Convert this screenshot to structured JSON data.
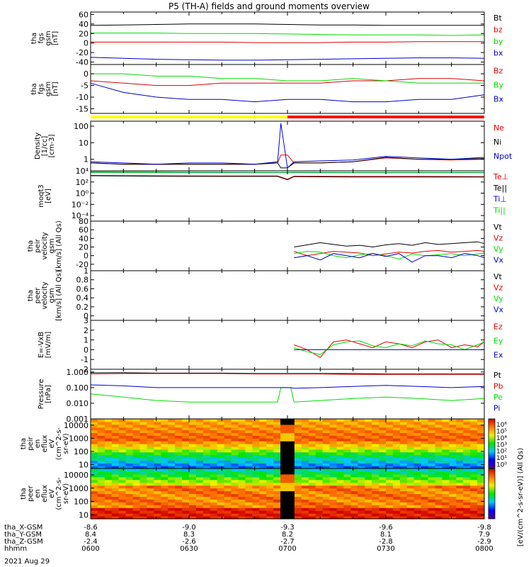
{
  "title": "P5 (TH-A) fields and ground moments overview",
  "date_label": "2021 Aug 29",
  "status_bar": {
    "colors": [
      "#ffff00",
      "#ff0000"
    ],
    "switch_time": 60
  },
  "colors": {
    "black": "#000000",
    "red": "#e00000",
    "green": "#00dd00",
    "blue": "#0000cc"
  },
  "ephemeris": {
    "row_labels": [
      "tha_X-GSM",
      "tha_Y-GSM",
      "tha_Z-GSM",
      "hhmm"
    ],
    "ticks": [
      {
        "t": 0,
        "values": [
          "-8.6",
          "8.4",
          "-2.4",
          "0600"
        ]
      },
      {
        "t": 30,
        "values": [
          "-9.0",
          "8.3",
          "-2.6",
          "0630"
        ]
      },
      {
        "t": 60,
        "values": [
          "-9.3",
          "8.2",
          "-2.7",
          "0700"
        ]
      },
      {
        "t": 90,
        "values": [
          "-9.6",
          "8.1",
          "-2.8",
          "0730"
        ]
      },
      {
        "t": 120,
        "values": [
          "-9.8",
          "7.9",
          "-2.9",
          "0800"
        ]
      }
    ]
  },
  "colorbar": {
    "label": "[eV/(cm^2-s-sr-eV)] (All Qs)",
    "ticks": [
      "10^6",
      "10^5",
      "10^4",
      "10^3",
      "10^2",
      "10^1",
      "10^0"
    ]
  },
  "chart_data": [
    {
      "type": "line",
      "ylabel": [
        "tha",
        "fgs",
        "gsm",
        "[nT]"
      ],
      "ylim": [
        -45,
        65
      ],
      "yticks": [
        60,
        40,
        20,
        0,
        -20,
        -40
      ],
      "x": [
        0,
        10,
        20,
        30,
        40,
        50,
        60,
        70,
        80,
        90,
        100,
        110,
        120
      ],
      "series": [
        {
          "name": "Bt",
          "color": "black",
          "values": [
            37,
            38,
            39,
            40,
            40,
            40,
            39,
            38,
            38,
            37,
            37,
            37,
            37
          ]
        },
        {
          "name": "bz",
          "color": "red",
          "values": [
            2,
            2,
            2,
            2,
            2,
            1,
            1,
            1,
            2,
            2,
            3,
            3,
            3
          ]
        },
        {
          "name": "by",
          "color": "green",
          "values": [
            21,
            21,
            21,
            20,
            20,
            20,
            19,
            18,
            17,
            17,
            17,
            16,
            17
          ]
        },
        {
          "name": "bx",
          "color": "blue",
          "values": [
            -30,
            -32,
            -34,
            -35,
            -36,
            -36,
            -35,
            -34,
            -33,
            -32,
            -31,
            -31,
            -32
          ]
        }
      ]
    },
    {
      "type": "line",
      "ylabel": [
        "tha",
        "fgs",
        "gsm",
        "[nT]"
      ],
      "ylim": [
        -17,
        4
      ],
      "yticks": [
        0,
        -5,
        -10,
        -15
      ],
      "x": [
        0,
        10,
        20,
        30,
        40,
        50,
        60,
        70,
        80,
        90,
        100,
        110,
        120
      ],
      "series": [
        {
          "name": "Bz",
          "color": "red",
          "values": [
            -3,
            -4,
            -5,
            -5,
            -4,
            -4,
            -4,
            -4,
            -3,
            -3,
            -2,
            -2,
            -3
          ]
        },
        {
          "name": "By",
          "color": "green",
          "values": [
            0,
            0,
            -1,
            -1,
            -2,
            -2,
            -3,
            -3,
            -2,
            -3,
            -4,
            -4,
            -4
          ]
        },
        {
          "name": "Bx",
          "color": "blue",
          "values": [
            -4,
            -8,
            -10,
            -11,
            -11,
            -12,
            -11,
            -11,
            -12,
            -12,
            -11,
            -11,
            -9
          ]
        }
      ]
    },
    {
      "type": "line",
      "ylabel": [
        "Density",
        "[1/cc]",
        "[cm-3]"
      ],
      "ylim": [
        0.2,
        200
      ],
      "log": true,
      "ytick_labels": [
        "100",
        "10",
        "1"
      ],
      "x": [
        0,
        10,
        20,
        30,
        40,
        50,
        57,
        58,
        60,
        62,
        70,
        80,
        90,
        100,
        110,
        120
      ],
      "series": [
        {
          "name": "Ne",
          "color": "red",
          "values": [
            0.6,
            0.5,
            0.5,
            0.5,
            0.5,
            0.5,
            0.6,
            1.8,
            1.8,
            0.6,
            0.6,
            0.7,
            1.2,
            1.0,
            0.9,
            1.0
          ]
        },
        {
          "name": "Ni",
          "color": "black",
          "values": [
            0.6,
            0.5,
            0.5,
            0.5,
            0.5,
            0.5,
            0.6,
            0.3,
            0.3,
            0.6,
            0.6,
            0.7,
            1.3,
            1.0,
            1.0,
            1.1
          ]
        },
        {
          "name": "Npot",
          "color": "blue",
          "values": [
            0.7,
            0.6,
            0.5,
            0.6,
            0.6,
            0.5,
            0.7,
            150,
            0.3,
            0.7,
            0.8,
            0.9,
            1.5,
            1.2,
            1.0,
            1.3
          ]
        }
      ]
    },
    {
      "type": "line",
      "ylabel": [
        "moqt3",
        "[eV]"
      ],
      "ylim": [
        1e-05,
        10000
      ],
      "log": true,
      "ytick_labels": [
        "10^4",
        "10^2",
        "10^0",
        "10^-2",
        "10^-4"
      ],
      "x": [
        0,
        20,
        40,
        57,
        60,
        62,
        80,
        100,
        120
      ],
      "series": [
        {
          "name": "Te⊥",
          "color": "red",
          "values": [
            1500,
            1300,
            1200,
            1200,
            300,
            1100,
            1000,
            1000,
            900
          ]
        },
        {
          "name": "Te||",
          "color": "black",
          "values": [
            1300,
            1100,
            1000,
            1000,
            250,
            900,
            800,
            800,
            800
          ]
        },
        {
          "name": "Ti⊥",
          "color": "blue",
          "values": [
            6000,
            5500,
            5200,
            5000,
            5000,
            5200,
            5000,
            5000,
            5000
          ]
        },
        {
          "name": "Ti||",
          "color": "green",
          "values": [
            5000,
            4800,
            4500,
            4500,
            4500,
            4600,
            4500,
            4400,
            4400
          ]
        }
      ]
    },
    {
      "type": "line",
      "ylabel": [
        "tha",
        "peir",
        "velocity",
        "gsm",
        "[km/s] (All Qs)"
      ],
      "ylim": [
        -35,
        80
      ],
      "yticks": [
        80,
        60,
        40,
        20,
        0,
        -20
      ],
      "x": [
        62,
        66,
        70,
        74,
        78,
        82,
        86,
        90,
        94,
        98,
        102,
        106,
        110,
        114,
        118,
        120
      ],
      "series": [
        {
          "name": "Vt",
          "color": "black",
          "values": [
            20,
            25,
            30,
            26,
            22,
            24,
            20,
            25,
            28,
            24,
            30,
            26,
            28,
            30,
            32,
            28
          ]
        },
        {
          "name": "Vz",
          "color": "red",
          "values": [
            10,
            0,
            5,
            10,
            8,
            6,
            0,
            4,
            8,
            6,
            10,
            12,
            8,
            10,
            12,
            10
          ]
        },
        {
          "name": "Vy",
          "color": "green",
          "values": [
            5,
            10,
            8,
            0,
            -5,
            2,
            5,
            0,
            -8,
            4,
            0,
            2,
            5,
            0,
            4,
            6
          ]
        },
        {
          "name": "Vx",
          "color": "blue",
          "values": [
            -5,
            0,
            -10,
            5,
            0,
            -5,
            5,
            -2,
            5,
            -15,
            0,
            0,
            -5,
            5,
            0,
            -5
          ]
        }
      ]
    },
    {
      "type": "line",
      "ylabel": [
        "tha",
        "peer",
        "velocity",
        "gsm",
        "[km/s] (All Qs)"
      ],
      "ylim": [
        -0.1,
        1.0
      ],
      "yticks": [
        1.0,
        0.8,
        0.6,
        0.4,
        0.2,
        0.0
      ],
      "x": [],
      "series": [
        {
          "name": "Vt",
          "color": "black",
          "values": []
        },
        {
          "name": "Vz",
          "color": "red",
          "values": []
        },
        {
          "name": "Vy",
          "color": "green",
          "values": []
        },
        {
          "name": "Vx",
          "color": "blue",
          "values": []
        }
      ]
    },
    {
      "type": "line",
      "ylabel": [
        "E=-VxB",
        "[mV/m]"
      ],
      "ylim": [
        -2,
        3
      ],
      "yticks": [
        3,
        2,
        1,
        0,
        -1,
        -2
      ],
      "x": [
        62,
        66,
        70,
        74,
        78,
        82,
        86,
        90,
        94,
        98,
        102,
        106,
        110,
        114,
        118,
        120
      ],
      "series": [
        {
          "name": "Ez",
          "color": "red",
          "values": [
            0.5,
            0,
            -0.8,
            0.8,
            1.0,
            0.6,
            0.2,
            0.8,
            0.6,
            0.2,
            0.8,
            1.0,
            0.2,
            0.5,
            0.3,
            0.8
          ]
        },
        {
          "name": "Ey",
          "color": "green",
          "values": [
            0.2,
            -0.2,
            -0.5,
            0.5,
            0.8,
            0.9,
            0.4,
            0.2,
            0.6,
            0.4,
            0.9,
            0.6,
            0.5,
            0.0,
            0.5,
            0.8
          ]
        },
        {
          "name": "Ex",
          "color": "blue",
          "values": [
            0,
            0,
            0,
            0,
            0,
            0,
            0,
            0,
            0,
            0,
            0,
            0,
            0,
            0,
            0,
            0
          ]
        }
      ]
    },
    {
      "type": "line",
      "ylabel": [
        "Pressure",
        "[nPa]"
      ],
      "ylim": [
        0.001,
        1.5
      ],
      "log": true,
      "ytick_labels": [
        "1.000",
        "0.100",
        "0.010",
        "0.001"
      ],
      "x": [
        0,
        10,
        20,
        30,
        40,
        50,
        57,
        58,
        61,
        62,
        70,
        80,
        90,
        100,
        110,
        120
      ],
      "series": [
        {
          "name": "Pt",
          "color": "black",
          "values": [
            0.9,
            0.9,
            0.85,
            0.85,
            0.85,
            0.8,
            0.8,
            0.8,
            0.8,
            0.8,
            0.8,
            0.8,
            0.75,
            0.75,
            0.75,
            0.75
          ]
        },
        {
          "name": "Pb",
          "color": "red",
          "values": [
            0.75,
            0.8,
            0.8,
            0.8,
            0.8,
            0.75,
            0.75,
            0.75,
            0.75,
            0.75,
            0.75,
            0.7,
            0.7,
            0.7,
            0.7,
            0.7
          ]
        },
        {
          "name": "Pe",
          "color": "green",
          "values": [
            0.04,
            0.025,
            0.015,
            0.012,
            0.012,
            0.012,
            0.012,
            0.1,
            0.1,
            0.012,
            0.015,
            0.02,
            0.025,
            0.02,
            0.015,
            0.02
          ]
        },
        {
          "name": "Pi",
          "color": "blue",
          "values": [
            0.15,
            0.13,
            0.1,
            0.1,
            0.1,
            0.1,
            0.1,
            0.1,
            0.1,
            0.09,
            0.1,
            0.12,
            0.14,
            0.12,
            0.1,
            0.12
          ]
        }
      ]
    },
    {
      "type": "heatmap",
      "ylabel": [
        "tha",
        "peir",
        "en",
        "eflux",
        "eV",
        "(cm^2-s-",
        "sr-eV)"
      ],
      "ylim": [
        5,
        30000
      ],
      "log": true,
      "ytick_labels": [
        "10000",
        "1000",
        "100",
        "10"
      ]
    },
    {
      "type": "heatmap",
      "ylabel": [
        "tha",
        "peer",
        "en",
        "eflux",
        "eV",
        "(cm^2-s-",
        "sr-eV)"
      ],
      "ylim": [
        5,
        30000
      ],
      "log": true,
      "ytick_labels": [
        "10000",
        "1000",
        "100",
        "10"
      ]
    }
  ]
}
